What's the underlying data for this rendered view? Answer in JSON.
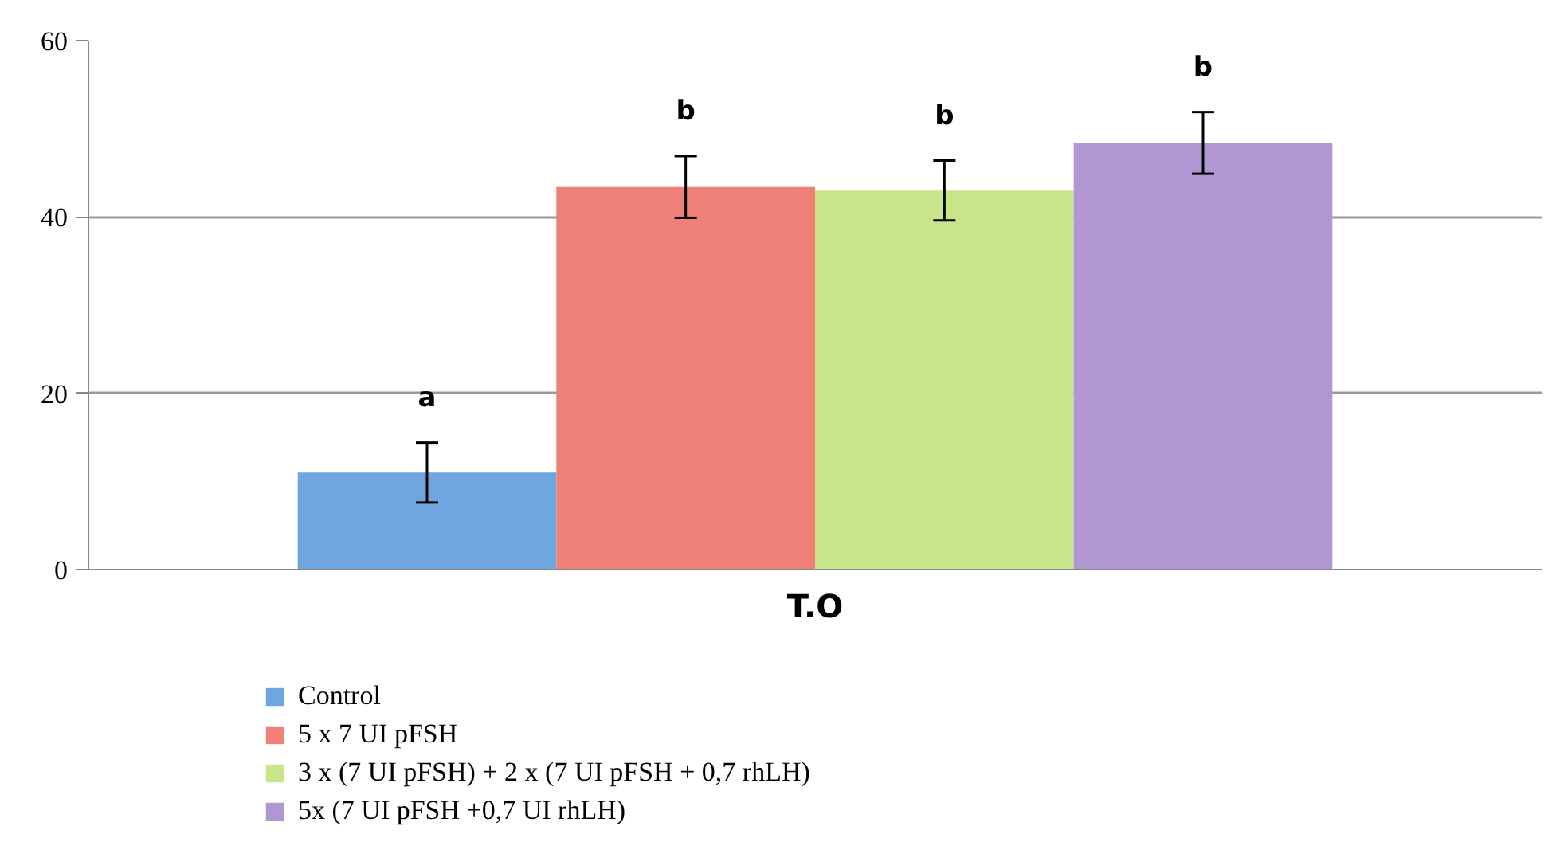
{
  "chart_data": {
    "type": "bar",
    "categories": [
      "T.O"
    ],
    "series": [
      {
        "name": "Control",
        "color": "#6fa6e0",
        "values": [
          11.0
        ],
        "errors": [
          3.4
        ]
      },
      {
        "name": "5 x 7 UI pFSH",
        "color": "#ee8078",
        "values": [
          43.4
        ],
        "errors": [
          3.5
        ]
      },
      {
        "name": "3 x (7 UI pFSH) + 2 x (7 UI pFSH + 0,7 rhLH)",
        "color": "#c8e58a",
        "values": [
          43.0
        ],
        "errors": [
          3.4
        ]
      },
      {
        "name": "5x (7 UI pFSH +0,7 UI rhLH)",
        "color": "#b096d2",
        "values": [
          48.4
        ],
        "errors": [
          3.5
        ]
      }
    ],
    "annotations": [
      "a",
      "b",
      "b",
      "b"
    ],
    "ylim": [
      0,
      60
    ],
    "yticks": [
      0,
      20,
      40,
      60
    ],
    "grid": "y",
    "legend": "bottom left"
  }
}
